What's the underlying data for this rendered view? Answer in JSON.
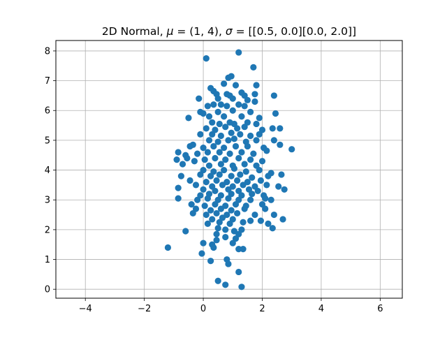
{
  "chart_data": {
    "type": "scatter",
    "title": "2D Normal, μ = (1, 4), σ = [[0.5, 0.0][0.0, 2.0]]",
    "title_parts": {
      "prefix": "2D Normal, ",
      "mu_symbol": "μ",
      "mu_value": " = (1, 4), ",
      "sigma_symbol": "σ",
      "sigma_value": " = [[0.5, 0.0][0.0, 2.0]]"
    },
    "xlabel": "",
    "ylabel": "",
    "xlim": [
      -5.0,
      6.75
    ],
    "ylim": [
      -0.3,
      8.35
    ],
    "xticks": [
      -4,
      -2,
      0,
      2,
      4,
      6
    ],
    "xtick_labels": [
      "−4",
      "−2",
      "0",
      "2",
      "4",
      "6"
    ],
    "yticks": [
      0,
      1,
      2,
      3,
      4,
      5,
      6,
      7,
      8
    ],
    "ytick_labels": [
      "0",
      "1",
      "2",
      "3",
      "4",
      "5",
      "6",
      "7",
      "8"
    ],
    "grid": true,
    "marker_color": "#1f77b4",
    "series": [
      {
        "points": [
          [
            0.1,
            7.75
          ],
          [
            1.2,
            7.95
          ],
          [
            1.7,
            7.45
          ],
          [
            0.85,
            7.1
          ],
          [
            0.95,
            7.15
          ],
          [
            0.7,
            6.9
          ],
          [
            1.1,
            6.85
          ],
          [
            1.8,
            6.85
          ],
          [
            0.25,
            6.75
          ],
          [
            0.35,
            6.65
          ],
          [
            0.45,
            6.55
          ],
          [
            0.8,
            6.55
          ],
          [
            0.9,
            6.5
          ],
          [
            1.3,
            6.6
          ],
          [
            1.4,
            6.5
          ],
          [
            1.75,
            6.55
          ],
          [
            2.4,
            6.5
          ],
          [
            -0.15,
            6.4
          ],
          [
            0.5,
            6.4
          ],
          [
            1.0,
            6.4
          ],
          [
            1.5,
            6.35
          ],
          [
            1.75,
            6.3
          ],
          [
            0.15,
            6.15
          ],
          [
            0.35,
            6.2
          ],
          [
            0.6,
            6.2
          ],
          [
            0.8,
            6.15
          ],
          [
            1.2,
            6.2
          ],
          [
            1.4,
            6.15
          ],
          [
            -0.1,
            5.95
          ],
          [
            0.0,
            5.9
          ],
          [
            0.5,
            5.95
          ],
          [
            1.0,
            6.0
          ],
          [
            1.6,
            5.95
          ],
          [
            2.45,
            5.9
          ],
          [
            -0.5,
            5.75
          ],
          [
            0.2,
            5.8
          ],
          [
            0.7,
            5.8
          ],
          [
            1.3,
            5.8
          ],
          [
            1.9,
            5.75
          ],
          [
            0.3,
            5.6
          ],
          [
            0.55,
            5.55
          ],
          [
            0.9,
            5.6
          ],
          [
            1.05,
            5.55
          ],
          [
            1.5,
            5.6
          ],
          [
            1.8,
            5.55
          ],
          [
            0.1,
            5.4
          ],
          [
            0.4,
            5.35
          ],
          [
            0.75,
            5.45
          ],
          [
            1.15,
            5.4
          ],
          [
            1.4,
            5.45
          ],
          [
            2.0,
            5.35
          ],
          [
            2.35,
            5.4
          ],
          [
            2.6,
            5.4
          ],
          [
            -0.1,
            5.2
          ],
          [
            0.3,
            5.2
          ],
          [
            0.6,
            5.15
          ],
          [
            0.95,
            5.25
          ],
          [
            1.25,
            5.2
          ],
          [
            1.6,
            5.15
          ],
          [
            1.9,
            5.2
          ],
          [
            0.2,
            5.0
          ],
          [
            0.5,
            4.95
          ],
          [
            0.85,
            5.0
          ],
          [
            1.05,
            5.05
          ],
          [
            1.45,
            4.95
          ],
          [
            1.8,
            5.0
          ],
          [
            2.4,
            5.0
          ],
          [
            2.6,
            4.85
          ],
          [
            -0.45,
            4.8
          ],
          [
            -0.35,
            4.85
          ],
          [
            0.0,
            4.75
          ],
          [
            0.35,
            4.8
          ],
          [
            0.7,
            4.75
          ],
          [
            1.1,
            4.8
          ],
          [
            1.5,
            4.8
          ],
          [
            2.05,
            4.75
          ],
          [
            3.0,
            4.7
          ],
          [
            -0.85,
            4.6
          ],
          [
            -0.6,
            4.5
          ],
          [
            -0.2,
            4.55
          ],
          [
            0.15,
            4.6
          ],
          [
            0.55,
            4.6
          ],
          [
            0.9,
            4.55
          ],
          [
            1.3,
            4.6
          ],
          [
            1.7,
            4.55
          ],
          [
            2.15,
            4.65
          ],
          [
            -0.9,
            4.35
          ],
          [
            -0.55,
            4.4
          ],
          [
            -0.3,
            4.3
          ],
          [
            0.05,
            4.35
          ],
          [
            0.4,
            4.4
          ],
          [
            0.75,
            4.35
          ],
          [
            1.2,
            4.4
          ],
          [
            1.6,
            4.35
          ],
          [
            2.0,
            4.3
          ],
          [
            -0.7,
            4.2
          ],
          [
            0.2,
            4.15
          ],
          [
            0.6,
            4.2
          ],
          [
            1.0,
            4.15
          ],
          [
            1.4,
            4.2
          ],
          [
            1.8,
            4.15
          ],
          [
            0.0,
            4.0
          ],
          [
            0.35,
            3.95
          ],
          [
            0.7,
            4.0
          ],
          [
            1.05,
            4.05
          ],
          [
            1.45,
            3.95
          ],
          [
            1.9,
            4.0
          ],
          [
            2.3,
            3.9
          ],
          [
            -0.75,
            3.8
          ],
          [
            -0.1,
            3.85
          ],
          [
            0.25,
            3.8
          ],
          [
            0.55,
            3.85
          ],
          [
            0.95,
            3.8
          ],
          [
            1.25,
            3.85
          ],
          [
            1.65,
            3.75
          ],
          [
            2.2,
            3.8
          ],
          [
            2.65,
            3.85
          ],
          [
            -0.45,
            3.65
          ],
          [
            0.1,
            3.6
          ],
          [
            0.45,
            3.65
          ],
          [
            0.8,
            3.6
          ],
          [
            1.15,
            3.65
          ],
          [
            1.5,
            3.6
          ],
          [
            1.95,
            3.65
          ],
          [
            -0.25,
            3.5
          ],
          [
            0.3,
            3.45
          ],
          [
            0.65,
            3.5
          ],
          [
            1.0,
            3.45
          ],
          [
            1.35,
            3.5
          ],
          [
            1.75,
            3.45
          ],
          [
            2.15,
            3.5
          ],
          [
            2.55,
            3.45
          ],
          [
            -0.85,
            3.4
          ],
          [
            0.0,
            3.35
          ],
          [
            0.4,
            3.3
          ],
          [
            0.85,
            3.35
          ],
          [
            1.2,
            3.3
          ],
          [
            1.55,
            3.35
          ],
          [
            1.85,
            3.3
          ],
          [
            2.75,
            3.35
          ],
          [
            -0.1,
            3.15
          ],
          [
            0.2,
            3.2
          ],
          [
            0.6,
            3.15
          ],
          [
            0.95,
            3.2
          ],
          [
            1.3,
            3.15
          ],
          [
            1.65,
            3.2
          ],
          [
            2.05,
            3.15
          ],
          [
            -0.85,
            3.05
          ],
          [
            -0.2,
            3.0
          ],
          [
            0.15,
            3.05
          ],
          [
            0.5,
            3.0
          ],
          [
            0.85,
            3.05
          ],
          [
            1.2,
            3.0
          ],
          [
            1.6,
            3.0
          ],
          [
            2.1,
            3.05
          ],
          [
            2.3,
            3.0
          ],
          [
            -0.4,
            2.85
          ],
          [
            0.05,
            2.8
          ],
          [
            0.4,
            2.85
          ],
          [
            0.75,
            2.8
          ],
          [
            1.1,
            2.85
          ],
          [
            1.45,
            2.8
          ],
          [
            2.0,
            2.85
          ],
          [
            -0.25,
            2.7
          ],
          [
            0.25,
            2.65
          ],
          [
            0.6,
            2.7
          ],
          [
            0.95,
            2.65
          ],
          [
            1.4,
            2.7
          ],
          [
            2.1,
            2.7
          ],
          [
            -0.35,
            2.55
          ],
          [
            0.1,
            2.5
          ],
          [
            0.45,
            2.55
          ],
          [
            0.8,
            2.5
          ],
          [
            1.15,
            2.55
          ],
          [
            1.75,
            2.5
          ],
          [
            2.4,
            2.5
          ],
          [
            0.3,
            2.35
          ],
          [
            0.65,
            2.4
          ],
          [
            1.0,
            2.35
          ],
          [
            1.6,
            2.3
          ],
          [
            1.95,
            2.3
          ],
          [
            2.7,
            2.35
          ],
          [
            0.15,
            2.2
          ],
          [
            0.55,
            2.25
          ],
          [
            0.9,
            2.2
          ],
          [
            1.35,
            2.25
          ],
          [
            2.2,
            2.2
          ],
          [
            -0.6,
            1.95
          ],
          [
            0.5,
            2.05
          ],
          [
            0.75,
            2.0
          ],
          [
            1.05,
            1.95
          ],
          [
            1.3,
            2.0
          ],
          [
            2.35,
            2.05
          ],
          [
            0.45,
            1.85
          ],
          [
            1.2,
            1.85
          ],
          [
            1.1,
            1.7
          ],
          [
            0.75,
            1.75
          ],
          [
            0.3,
            1.5
          ],
          [
            0.0,
            1.55
          ],
          [
            0.35,
            1.4
          ],
          [
            0.45,
            1.65
          ],
          [
            1.0,
            1.55
          ],
          [
            1.2,
            1.35
          ],
          [
            1.35,
            1.35
          ],
          [
            -1.2,
            1.4
          ],
          [
            -0.05,
            1.2
          ],
          [
            0.25,
            0.95
          ],
          [
            0.8,
            1.0
          ],
          [
            0.85,
            0.85
          ],
          [
            1.2,
            0.58
          ],
          [
            0.5,
            0.28
          ],
          [
            0.75,
            0.15
          ],
          [
            1.3,
            0.08
          ]
        ]
      }
    ]
  }
}
